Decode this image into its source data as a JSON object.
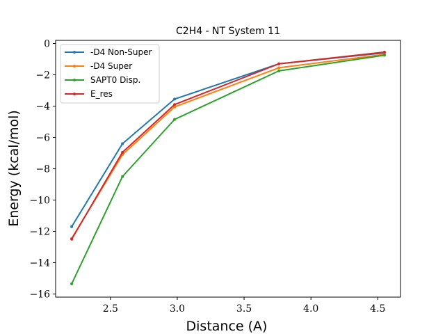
{
  "chart_data": {
    "type": "line",
    "title": "C2H4 - NT System 11",
    "xlabel": "Distance (A)",
    "ylabel": "Energy (kcal/mol)",
    "xlim": [
      2.09,
      4.67
    ],
    "ylim": [
      -16.2,
      0.2
    ],
    "xticks": [
      2.5,
      3.0,
      3.5,
      4.0,
      4.5
    ],
    "xtick_labels": [
      "2.5",
      "3.0",
      "3.5",
      "4.0",
      "4.5"
    ],
    "yticks": [
      0,
      -2,
      -4,
      -6,
      -8,
      -10,
      -12,
      -14,
      -16
    ],
    "ytick_labels": [
      "0",
      "−2",
      "−4",
      "−6",
      "−8",
      "−10",
      "−12",
      "−14",
      "−16"
    ],
    "legend_position": "top-left",
    "grid": false,
    "x": [
      2.21,
      2.59,
      2.98,
      3.76,
      4.55
    ],
    "series": [
      {
        "name": "-D4 Non-Super",
        "color": "#1f77b4",
        "values": [
          -11.7,
          -6.4,
          -3.55,
          -1.3,
          -0.6
        ]
      },
      {
        "name": "-D4 Super",
        "color": "#ff7f0e",
        "values": [
          -12.45,
          -7.1,
          -4.05,
          -1.55,
          -0.7
        ]
      },
      {
        "name": "SAPT0 Disp.",
        "color": "#2ca02c",
        "values": [
          -15.35,
          -8.5,
          -4.85,
          -1.75,
          -0.75
        ]
      },
      {
        "name": "E_res",
        "color": "#d62728",
        "values": [
          -12.5,
          -6.95,
          -3.9,
          -1.3,
          -0.55
        ]
      }
    ]
  }
}
